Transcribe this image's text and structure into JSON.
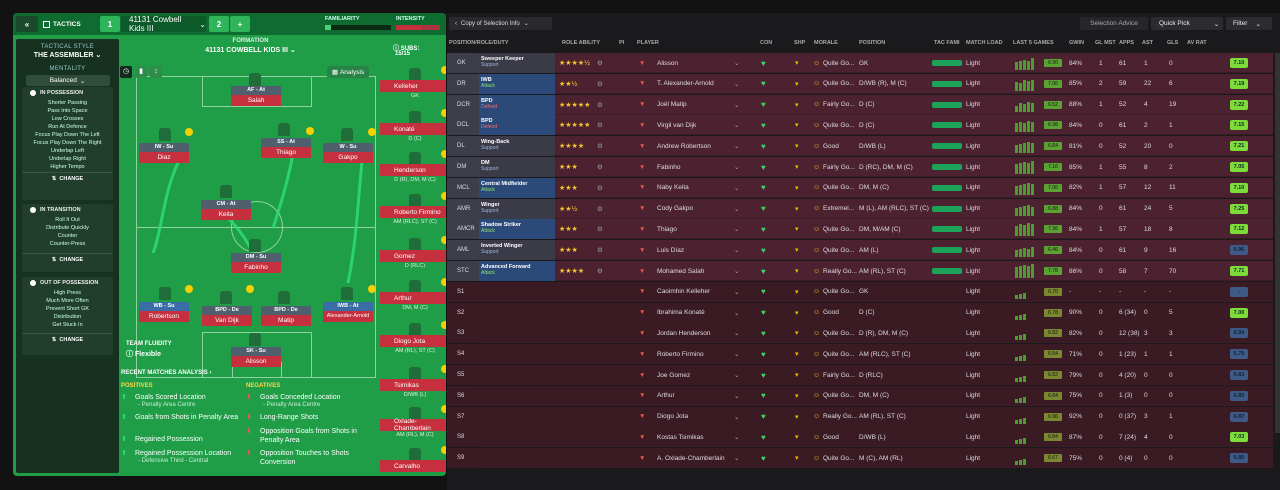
{
  "top": {
    "collapse_icon": "double-chevron-left-icon",
    "tactics_label": "TACTICS",
    "slot1": "1",
    "tactic_name": "41131 Cowbell Kids III",
    "slot2": "2",
    "add": "+",
    "familiarity_label": "FAMILIARITY",
    "intensity_label": "INTENSITY"
  },
  "left": {
    "style_label": "TACTICAL STYLE",
    "style_value": "THE ASSEMBLER",
    "mentality_label": "MENTALITY",
    "mentality_value": "Balanced",
    "possession": {
      "title": "IN POSSESSION",
      "items": [
        "Shorter Passing",
        "Pass Into Space",
        "Low Crosses",
        "Run At Defence",
        "Focus Play Down The Left",
        "Focus Play Down The Right",
        "Underlap Left",
        "Underlap Right",
        "Higher Tempo"
      ],
      "change": "CHANGE"
    },
    "transition": {
      "title": "IN TRANSITION",
      "items": [
        "Roll It Out",
        "Distribute Quickly",
        "Counter",
        "Counter-Press"
      ],
      "change": "CHANGE"
    },
    "outof": {
      "title": "OUT OF POSSESSION",
      "items": [
        "High Press",
        "Much More Often",
        "Prevent Short GK",
        "Distribution",
        "Get Stuck In"
      ],
      "change": "CHANGE"
    }
  },
  "formation": {
    "label": "FORMATION",
    "name": "41131 COWBELL KIDS III",
    "subs_label": "SUBS:",
    "subs_value": "15/15",
    "analysis": "Analysis",
    "fluidity_label": "TEAM FLUIDITY",
    "fluidity_value": "Flexible",
    "players": [
      {
        "role": "AF - At",
        "name": "Salah"
      },
      {
        "role": "IW - Su",
        "name": "Diaz"
      },
      {
        "role": "SS - At",
        "name": "Thiago"
      },
      {
        "role": "W - Su",
        "name": "Gakpo"
      },
      {
        "role": "CM - At",
        "name": "Keita"
      },
      {
        "role": "DM - Su",
        "name": "Fabinho"
      },
      {
        "role": "WB - Su",
        "name": "Robertson"
      },
      {
        "role": "BPD - De",
        "name": "Van Dijk"
      },
      {
        "role": "BPD - De",
        "name": "Matip"
      },
      {
        "role": "IWB - At",
        "name": "Alexander-Arnold"
      },
      {
        "role": "SK - Su",
        "name": "Alisson"
      }
    ]
  },
  "subs": [
    {
      "name": "Kelleher",
      "pos": "GK"
    },
    {
      "name": "Konaté",
      "pos": "D (C)"
    },
    {
      "name": "Henderson",
      "pos": "D (R), DM, M (C)"
    },
    {
      "name": "Roberto Firmino",
      "pos": "AM (RLC), ST (C)"
    },
    {
      "name": "Gomez",
      "pos": "D (RLC)"
    },
    {
      "name": "Arthur",
      "pos": "DM, M (C)"
    },
    {
      "name": "Diogo Jota",
      "pos": "AM (RL), ST (C)"
    },
    {
      "name": "Tsimikas",
      "pos": "D/WB (L)"
    },
    {
      "name": "Oxlade-Chamberlain",
      "pos": "AM (RL), M (C)"
    },
    {
      "name": "Carvalho",
      "pos": ""
    }
  ],
  "analysis": {
    "title": "RECENT MATCHES ANALYSIS",
    "pos_label": "POSITIVES",
    "neg_label": "NEGATIVES",
    "positives": [
      {
        "t": "Goals Scored Location",
        "s": "- Penalty Area Centre"
      },
      {
        "t": "Goals from Shots in Penalty Area",
        "s": ""
      },
      {
        "t": "Regained Possession",
        "s": ""
      },
      {
        "t": "Regained Possession Location",
        "s": "- Defensive Third - Central"
      }
    ],
    "negatives": [
      {
        "t": "Goals Conceded Location",
        "s": "- Penalty Area Centre"
      },
      {
        "t": "Long-Range Shots",
        "s": ""
      },
      {
        "t": "Opposition Goals from Shots in Penalty Area",
        "s": ""
      },
      {
        "t": "Opposition Touches to Shots Conversion",
        "s": ""
      }
    ]
  },
  "sel": {
    "copy_btn": "Copy of Selection Info",
    "advice": "Selection Advice",
    "quick_pick": "Quick Pick",
    "filter": "Filter",
    "headers": [
      "POSITION/ROLE/DUTY",
      "ROLE ABILITY",
      "PI",
      "PLAYER",
      "CON",
      "SHP",
      "MORALE",
      "POSITION",
      "TAC FAMI",
      "MATCH LOAD",
      "LAST 5 GAMES",
      "GWIN",
      "GL MST",
      "APPS",
      "AST",
      "GLS",
      "AV RAT"
    ],
    "rows": [
      {
        "pos": "GK",
        "role": "Sweeper Keeper",
        "duty": "Support",
        "stars": "★★★★½",
        "player": "Alisson",
        "morale": "Quite Go...",
        "position": "GK",
        "load": "Light",
        "avg": "6.90",
        "gwin": "84%",
        "glm": "1",
        "apps": "61",
        "ast": "1",
        "gls": "0",
        "rat": "7.10"
      },
      {
        "pos": "DR",
        "role": "IWB",
        "duty": "Attack",
        "stars": "★★½",
        "player": "T. Alexander-Arnold",
        "morale": "Quite Go...",
        "position": "D/WB (R), M (C)",
        "load": "Light",
        "avg": "7.06",
        "gwin": "85%",
        "glm": "2",
        "apps": "59",
        "ast": "22",
        "gls": "6",
        "rat": "7.19"
      },
      {
        "pos": "DCR",
        "role": "BPD",
        "duty": "Defend",
        "stars": "★★★★★",
        "player": "Joël Matip",
        "morale": "Fairly Go...",
        "position": "D (C)",
        "load": "Light",
        "avg": "6.52",
        "gwin": "88%",
        "glm": "1",
        "apps": "52",
        "ast": "4",
        "gls": "19",
        "rat": "7.22"
      },
      {
        "pos": "DCL",
        "role": "BPD",
        "duty": "Defend",
        "stars": "★★★★★",
        "player": "Virgil van Dijk",
        "morale": "Quite Go...",
        "position": "D (C)",
        "load": "Light",
        "avg": "6.98",
        "gwin": "84%",
        "glm": "0",
        "apps": "61",
        "ast": "2",
        "gls": "1",
        "rat": "7.15"
      },
      {
        "pos": "DL",
        "role": "Wing-Back",
        "duty": "Support",
        "stars": "★★★★",
        "player": "Andrew Robertson",
        "morale": "Good",
        "position": "D/WB (L)",
        "load": "Light",
        "avg": "6.84",
        "gwin": "81%",
        "glm": "0",
        "apps": "52",
        "ast": "20",
        "gls": "0",
        "rat": "7.21"
      },
      {
        "pos": "DM",
        "role": "DM",
        "duty": "Support",
        "stars": "★★★",
        "player": "Fabinho",
        "morale": "Fairly Go...",
        "position": "D (RC), DM, M (C)",
        "load": "Light",
        "avg": "7.16",
        "gwin": "85%",
        "glm": "1",
        "apps": "55",
        "ast": "8",
        "gls": "2",
        "rat": "7.05"
      },
      {
        "pos": "MCL",
        "role": "Central Midfielder",
        "duty": "Attack",
        "stars": "★★★",
        "player": "Naby Keita",
        "morale": "Quite Go...",
        "position": "DM, M (C)",
        "load": "Light",
        "avg": "7.06",
        "gwin": "82%",
        "glm": "1",
        "apps": "57",
        "ast": "12",
        "gls": "11",
        "rat": "7.10"
      },
      {
        "pos": "AMR",
        "role": "Winger",
        "duty": "Support",
        "stars": "★★½",
        "player": "Cody Gakpo",
        "morale": "Extremel...",
        "position": "M (L), AM (RLC), ST (C)",
        "load": "Light",
        "avg": "6.88",
        "gwin": "84%",
        "glm": "0",
        "apps": "61",
        "ast": "24",
        "gls": "5",
        "rat": "7.25"
      },
      {
        "pos": "AMCR",
        "role": "Shadow Striker",
        "duty": "Attack",
        "stars": "★★★",
        "player": "Thiago",
        "morale": "Quite Go...",
        "position": "DM, M/AM (C)",
        "load": "Light",
        "avg": "7.36",
        "gwin": "84%",
        "glm": "1",
        "apps": "57",
        "ast": "18",
        "gls": "8",
        "rat": "7.12"
      },
      {
        "pos": "AML",
        "role": "Inverted Winger",
        "duty": "Support",
        "stars": "★★★",
        "player": "Luis Díaz",
        "morale": "Quite Go...",
        "position": "AM (L)",
        "load": "Light",
        "avg": "6.46",
        "gwin": "84%",
        "glm": "0",
        "apps": "61",
        "ast": "9",
        "gls": "16",
        "rat": "6.96"
      },
      {
        "pos": "STC",
        "role": "Advanced Forward",
        "duty": "Attack",
        "stars": "★★★★",
        "player": "Mohamed Salah",
        "morale": "Really Go...",
        "position": "AM (RL), ST (C)",
        "load": "Light",
        "avg": "7.78",
        "gwin": "86%",
        "glm": "0",
        "apps": "58",
        "ast": "7",
        "gls": "70",
        "rat": "7.71"
      },
      {
        "pos": "S1",
        "role": "",
        "duty": "",
        "stars": "",
        "player": "Caoimhin Kelleher",
        "morale": "Quite Go...",
        "position": "GK",
        "load": "Light",
        "avg": "6.70",
        "gwin": "-",
        "glm": "-",
        "apps": "-",
        "ast": "-",
        "gls": "-",
        "rat": "-"
      },
      {
        "pos": "S2",
        "role": "",
        "duty": "",
        "stars": "",
        "player": "Ibrahima Konaté",
        "morale": "Good",
        "position": "D (C)",
        "load": "Light",
        "avg": "6.78",
        "gwin": "90%",
        "glm": "0",
        "apps": "6 (34)",
        "ast": "0",
        "gls": "5",
        "rat": "7.00"
      },
      {
        "pos": "S3",
        "role": "",
        "duty": "",
        "stars": "",
        "player": "Jordan Henderson",
        "morale": "Quite Go...",
        "position": "D (R), DM, M (C)",
        "load": "Light",
        "avg": "6.82",
        "gwin": "82%",
        "glm": "0",
        "apps": "12 (38)",
        "ast": "3",
        "gls": "3",
        "rat": "6.94"
      },
      {
        "pos": "S4",
        "role": "",
        "duty": "",
        "stars": "",
        "player": "Roberto Firmino",
        "morale": "Quite Go...",
        "position": "AM (RLC), ST (C)",
        "load": "Light",
        "avg": "6.54",
        "gwin": "71%",
        "glm": "0",
        "apps": "1 (23)",
        "ast": "1",
        "gls": "1",
        "rat": "6.79"
      },
      {
        "pos": "S5",
        "role": "",
        "duty": "",
        "stars": "",
        "player": "Joe Gomez",
        "morale": "Fairly Go...",
        "position": "D (RLC)",
        "load": "Light",
        "avg": "6.82",
        "gwin": "79%",
        "glm": "0",
        "apps": "4 (20)",
        "ast": "0",
        "gls": "0",
        "rat": "6.83"
      },
      {
        "pos": "S6",
        "role": "",
        "duty": "",
        "stars": "",
        "player": "Arthur",
        "morale": "Quite Go...",
        "position": "DM, M (C)",
        "load": "Light",
        "avg": "6.84",
        "gwin": "75%",
        "glm": "0",
        "apps": "1 (3)",
        "ast": "0",
        "gls": "0",
        "rat": "6.85"
      },
      {
        "pos": "S7",
        "role": "",
        "duty": "",
        "stars": "",
        "player": "Diogo Jota",
        "morale": "Really Go...",
        "position": "AM (RL), ST (C)",
        "load": "Light",
        "avg": "6.96",
        "gwin": "92%",
        "glm": "0",
        "apps": "0 (37)",
        "ast": "3",
        "gls": "1",
        "rat": "6.87"
      },
      {
        "pos": "S8",
        "role": "",
        "duty": "",
        "stars": "",
        "player": "Kostas Tsimikas",
        "morale": "Good",
        "position": "D/WB (L)",
        "load": "Light",
        "avg": "6.84",
        "gwin": "87%",
        "glm": "0",
        "apps": "7 (24)",
        "ast": "4",
        "gls": "0",
        "rat": "7.03"
      },
      {
        "pos": "S9",
        "role": "",
        "duty": "",
        "stars": "",
        "player": "A. Oxlade-Chamberlain",
        "morale": "Quite Go...",
        "position": "M (C), AM (RL)",
        "load": "Light",
        "avg": "6.67",
        "gwin": "75%",
        "glm": "0",
        "apps": "0 (4)",
        "ast": "0",
        "gls": "0",
        "rat": "6.80"
      }
    ]
  }
}
